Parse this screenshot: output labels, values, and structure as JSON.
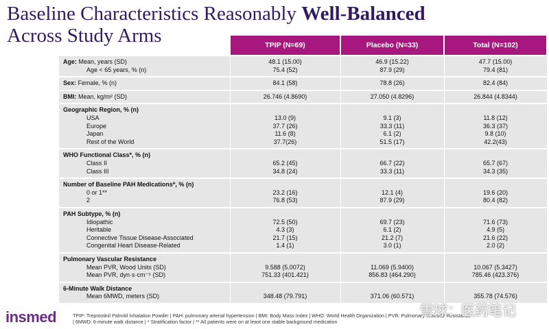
{
  "title": {
    "line1": "Baseline Characteristics Reasonably",
    "emphasis": "Well-Balanced",
    "line2": "Across Study Arms"
  },
  "table": {
    "columns": [
      "TPIP (N=69)",
      "Placebo (N=33)",
      "Total (N=102)"
    ],
    "groups": [
      {
        "rows": [
          {
            "heading": "Age:",
            "label": "Mean, years (SD)",
            "values": [
              "48.1 (15.00)",
              "46.9 (15.22)",
              "47.7 (15.00)"
            ]
          },
          {
            "label": "Age < 65 years, % (n)",
            "values": [
              "75.4 (52)",
              "87.9 (29)",
              "79.4 (81)"
            ]
          }
        ]
      },
      {
        "rows": [
          {
            "heading": "Sex:",
            "label": "Female, % (n)",
            "values": [
              "84.1 (58)",
              "78.8 (26)",
              "82.4 (84)"
            ]
          }
        ]
      },
      {
        "rows": [
          {
            "heading": "BMI:",
            "label": "Mean, kg/m² (SD)",
            "values": [
              "26.746 (4.8690)",
              "27.050 (4.8296)",
              "26.844 (4.8344)"
            ]
          }
        ]
      },
      {
        "rows": [
          {
            "heading": "Geographic Region, % (n)"
          },
          {
            "label": "USA",
            "values": [
              "13.0 (9)",
              "9.1 (3)",
              "11.8 (12)"
            ]
          },
          {
            "label": "Europe",
            "values": [
              "37.7 (26)",
              "33.3 (11)",
              "36.3 (37)"
            ]
          },
          {
            "label": "Japan",
            "values": [
              "11.6 (8)",
              "6.1 (2)",
              "9.8 (10)"
            ]
          },
          {
            "label": "Rest of the World",
            "values": [
              "37.7(26)",
              "51.5 (17)",
              "42.2(43)"
            ]
          }
        ]
      },
      {
        "rows": [
          {
            "heading": "WHO Functional Class*, % (n)"
          },
          {
            "label": "Class II",
            "values": [
              "65.2 (45)",
              "66.7 (22)",
              "65.7 (67)"
            ]
          },
          {
            "label": "Class III",
            "values": [
              "34.8 (24)",
              "33.3 (11)",
              "34.3 (35)"
            ]
          }
        ]
      },
      {
        "rows": [
          {
            "heading": "Number of Baseline PAH Medications*, % (n)"
          },
          {
            "label": "0 or 1**",
            "values": [
              "23.2 (16)",
              "12.1 (4)",
              "19.6 (20)"
            ]
          },
          {
            "label": "2",
            "values": [
              "76.8 (53)",
              "87.9 (29)",
              "80.4 (82)"
            ]
          }
        ]
      },
      {
        "rows": [
          {
            "heading": "PAH Subtype, % (n)"
          },
          {
            "label": "Idiopathic",
            "values": [
              "72.5 (50)",
              "69.7 (23)",
              "71.6 (73)"
            ]
          },
          {
            "label": "Heritable",
            "values": [
              "4.3 (3)",
              "6.1 (2)",
              "4.9 (5)"
            ]
          },
          {
            "label": "Connective Tissue Disease-Associated",
            "values": [
              "21.7 (15)",
              "21.2 (7)",
              "21.6 (22)"
            ]
          },
          {
            "label": "Congenital Heart Disease-Related",
            "values": [
              "1.4 (1)",
              "3.0 (1)",
              "2.0 (2)"
            ]
          }
        ]
      },
      {
        "rows": [
          {
            "heading": "Pulmonary Vascular Resistance"
          },
          {
            "label": "Mean PVR, Wood Units (SD)",
            "values": [
              "9.588 (5.0072)",
              "11.069 (5.9400)",
              "10.067 (5.3427)"
            ]
          },
          {
            "label": "Mean PVR, dyn·s·cm⁻⁵ (SD)",
            "values": [
              "751.33 (401.421)",
              "856.83 (464.290)",
              "785.46 (423.376)"
            ]
          }
        ]
      },
      {
        "rows": [
          {
            "heading": "6-Minute Walk Distance"
          },
          {
            "label": "Mean 6MWD, meters (SD)",
            "values": [
              "348.48 (79.791)",
              "371.06 (60.571)",
              "355.78 (74.576)"
            ]
          }
        ]
      }
    ]
  },
  "footnote": "TPIP: Treprostinil Palmitil Inhalation Powder | PAH: pulmonary arterial hypertension | BMI: Body Mass Index | WHO: World Health Organization | PVR: Pulmonary Vascular Resistance | 6MWD: 6-minute walk distance | * Stratification factor | ** All patients were on at least one stable background medication",
  "logo": "insmed",
  "watermark": "雪球：医药笔记"
}
